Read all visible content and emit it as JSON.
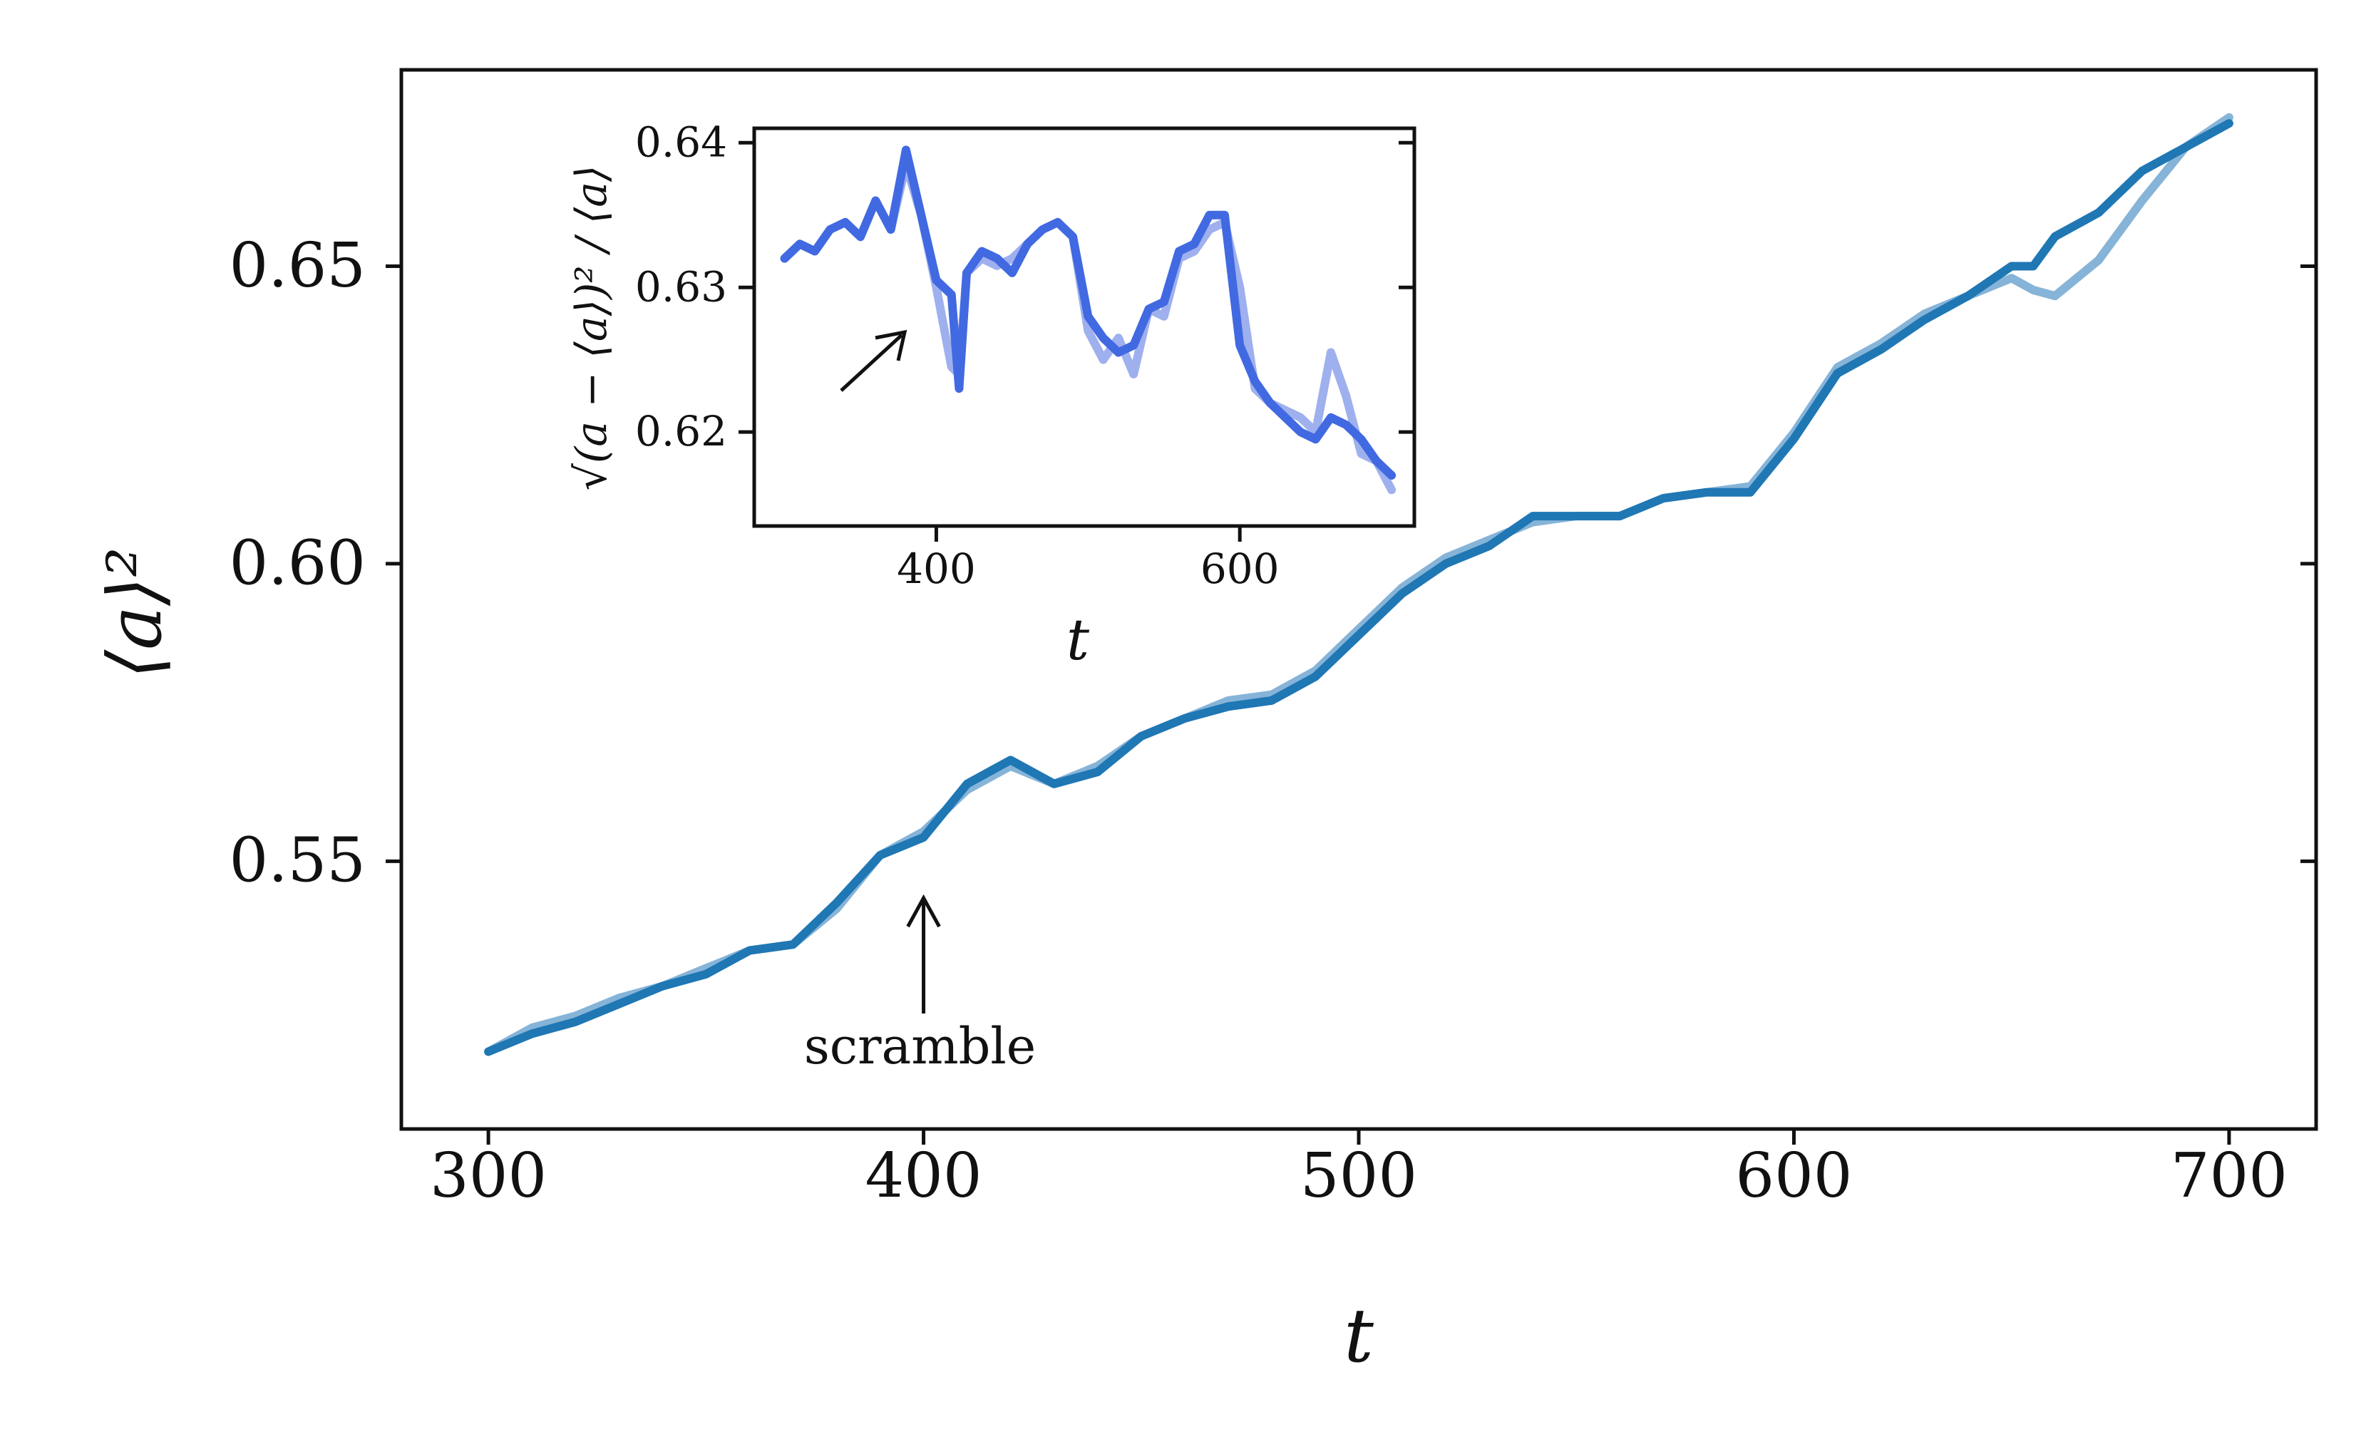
{
  "chart_data": [
    {
      "type": "line",
      "role": "main",
      "xlabel": "t",
      "ylabel": "⟨a⟩²",
      "xlim": [
        280,
        720
      ],
      "ylim": [
        0.505,
        0.683
      ],
      "xticks": [
        300,
        400,
        500,
        600,
        700
      ],
      "xtick_labels": [
        "300",
        "400",
        "500",
        "600",
        "700"
      ],
      "yticks": [
        0.55,
        0.6,
        0.65
      ],
      "ytick_labels": [
        "0.55",
        "0.60",
        "0.65"
      ],
      "annotation": {
        "text": "scramble",
        "x": 400
      },
      "series": [
        {
          "style": "light",
          "color": "#86b4d8",
          "x": [
            300,
            310,
            320,
            330,
            340,
            350,
            360,
            370,
            380,
            390,
            400,
            410,
            420,
            430,
            440,
            450,
            460,
            470,
            480,
            490,
            500,
            510,
            520,
            530,
            540,
            550,
            560,
            570,
            580,
            590,
            600,
            610,
            620,
            630,
            640,
            650,
            655,
            660,
            670,
            680,
            690,
            700
          ],
          "y": [
            0.518,
            0.522,
            0.524,
            0.527,
            0.529,
            0.532,
            0.535,
            0.536,
            0.542,
            0.551,
            0.555,
            0.562,
            0.566,
            0.563,
            0.566,
            0.571,
            0.574,
            0.577,
            0.578,
            0.582,
            0.589,
            0.596,
            0.601,
            0.604,
            0.607,
            0.608,
            0.608,
            0.611,
            0.612,
            0.613,
            0.622,
            0.633,
            0.637,
            0.642,
            0.645,
            0.648,
            0.646,
            0.645,
            0.651,
            0.661,
            0.67,
            0.675
          ]
        },
        {
          "style": "dark",
          "color": "#1f77b4",
          "x": [
            300,
            310,
            320,
            330,
            340,
            350,
            360,
            370,
            380,
            390,
            400,
            410,
            420,
            430,
            440,
            450,
            460,
            470,
            480,
            490,
            500,
            510,
            520,
            530,
            540,
            550,
            560,
            570,
            580,
            590,
            600,
            610,
            620,
            630,
            640,
            650,
            655,
            660,
            670,
            680,
            690,
            700
          ],
          "y": [
            0.518,
            0.521,
            0.523,
            0.526,
            0.529,
            0.531,
            0.535,
            0.536,
            0.543,
            0.551,
            0.554,
            0.563,
            0.567,
            0.563,
            0.565,
            0.571,
            0.574,
            0.576,
            0.577,
            0.581,
            0.588,
            0.595,
            0.6,
            0.603,
            0.608,
            0.608,
            0.608,
            0.611,
            0.612,
            0.612,
            0.621,
            0.632,
            0.636,
            0.641,
            0.645,
            0.65,
            0.65,
            0.655,
            0.659,
            0.666,
            0.67,
            0.674
          ]
        }
      ]
    },
    {
      "type": "line",
      "role": "inset",
      "xlabel": "t",
      "ylabel": "√(a − ⟨a⟩)² / ⟨a⟩",
      "xlim": [
        280,
        715
      ],
      "ylim": [
        0.6135,
        0.641
      ],
      "xticks": [
        400,
        600
      ],
      "xtick_labels": [
        "400",
        "600"
      ],
      "yticks": [
        0.62,
        0.63,
        0.64
      ],
      "ytick_labels": [
        "0.62",
        "0.63",
        "0.64"
      ],
      "series": [
        {
          "style": "light",
          "color": "#9fb0ee",
          "x": [
            300,
            310,
            320,
            330,
            340,
            350,
            360,
            370,
            380,
            390,
            400,
            410,
            415,
            420,
            430,
            440,
            450,
            460,
            470,
            480,
            490,
            500,
            510,
            520,
            530,
            540,
            550,
            560,
            570,
            580,
            590,
            600,
            610,
            620,
            630,
            640,
            650,
            660,
            670,
            680,
            690,
            700
          ],
          "y": [
            0.632,
            0.633,
            0.6325,
            0.634,
            0.6345,
            0.6335,
            0.636,
            0.634,
            0.6385,
            0.635,
            0.63,
            0.6245,
            0.624,
            0.631,
            0.632,
            0.6315,
            0.632,
            0.633,
            0.634,
            0.6345,
            0.6335,
            0.627,
            0.625,
            0.6265,
            0.624,
            0.6285,
            0.628,
            0.632,
            0.6325,
            0.634,
            0.6345,
            0.63,
            0.623,
            0.622,
            0.6215,
            0.621,
            0.62,
            0.6255,
            0.6225,
            0.6185,
            0.618,
            0.616
          ]
        },
        {
          "style": "dark",
          "color": "#4169e1",
          "x": [
            300,
            310,
            320,
            330,
            340,
            350,
            360,
            370,
            380,
            390,
            400,
            410,
            415,
            420,
            430,
            440,
            450,
            460,
            470,
            480,
            490,
            500,
            510,
            520,
            530,
            540,
            550,
            560,
            570,
            580,
            590,
            600,
            610,
            620,
            630,
            640,
            650,
            660,
            670,
            680,
            690,
            700
          ],
          "y": [
            0.632,
            0.633,
            0.6325,
            0.634,
            0.6345,
            0.6335,
            0.636,
            0.634,
            0.6395,
            0.635,
            0.6305,
            0.6295,
            0.623,
            0.631,
            0.6325,
            0.632,
            0.631,
            0.633,
            0.634,
            0.6345,
            0.6335,
            0.628,
            0.6265,
            0.6255,
            0.626,
            0.6285,
            0.629,
            0.6325,
            0.633,
            0.635,
            0.635,
            0.626,
            0.6235,
            0.622,
            0.621,
            0.62,
            0.6195,
            0.621,
            0.6205,
            0.6195,
            0.618,
            0.617
          ]
        }
      ]
    }
  ]
}
